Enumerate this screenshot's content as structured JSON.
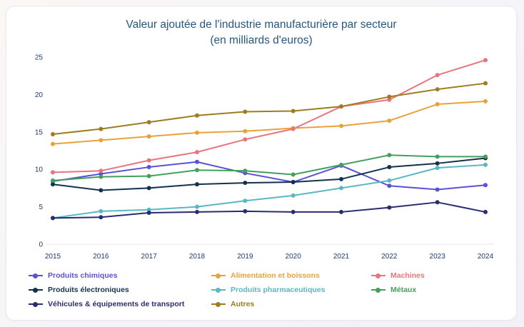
{
  "chart_data": {
    "type": "line",
    "title": "Valeur ajoutée de l'industrie manufacturière par secteur",
    "subtitle": "(en milliards d'euros)",
    "xlabel": "",
    "ylabel": "",
    "x": [
      "2015",
      "2016",
      "2017",
      "2018",
      "2019",
      "2020",
      "2021",
      "2022",
      "2023",
      "2024"
    ],
    "ylim": [
      0,
      25
    ],
    "yticks": [
      0,
      5,
      10,
      15,
      20,
      25
    ],
    "grid": false,
    "legend_position": "bottom",
    "axis_label_color": "#1e3a70",
    "title_color": "#27567e",
    "series": [
      {
        "name": "Produits chimiques",
        "color": "#5a51d4",
        "values": [
          8.4,
          9.4,
          10.3,
          11.0,
          9.5,
          8.3,
          10.5,
          7.8,
          7.3,
          7.9
        ]
      },
      {
        "name": "Alimentation et boissons",
        "color": "#e9a23b",
        "values": [
          13.4,
          13.9,
          14.4,
          14.9,
          15.1,
          15.5,
          15.8,
          16.5,
          18.7,
          19.1
        ]
      },
      {
        "name": "Machines",
        "color": "#e8757d",
        "values": [
          9.6,
          9.8,
          11.2,
          12.3,
          14.0,
          15.4,
          18.4,
          19.3,
          22.6,
          24.6
        ]
      },
      {
        "name": "Produits électroniques",
        "color": "#14324f",
        "values": [
          8.0,
          7.2,
          7.5,
          8.0,
          8.2,
          8.3,
          8.7,
          10.3,
          10.8,
          11.5
        ]
      },
      {
        "name": "Produits pharmaceutiques",
        "color": "#5ab7c4",
        "values": [
          3.5,
          4.4,
          4.6,
          5.0,
          5.8,
          6.5,
          7.5,
          8.5,
          10.2,
          10.6
        ]
      },
      {
        "name": "Métaux",
        "color": "#43a05c",
        "values": [
          8.5,
          9.0,
          9.1,
          9.9,
          9.8,
          9.3,
          10.6,
          11.9,
          11.7,
          11.7
        ]
      },
      {
        "name": "Véhicules & équipements de transport",
        "color": "#2a2c72",
        "values": [
          3.5,
          3.6,
          4.2,
          4.3,
          4.4,
          4.3,
          4.3,
          4.9,
          5.6,
          4.3
        ]
      },
      {
        "name": "Autres",
        "color": "#9e7c1f",
        "values": [
          14.7,
          15.4,
          16.3,
          17.2,
          17.7,
          17.8,
          18.4,
          19.7,
          20.7,
          21.5
        ]
      }
    ]
  }
}
